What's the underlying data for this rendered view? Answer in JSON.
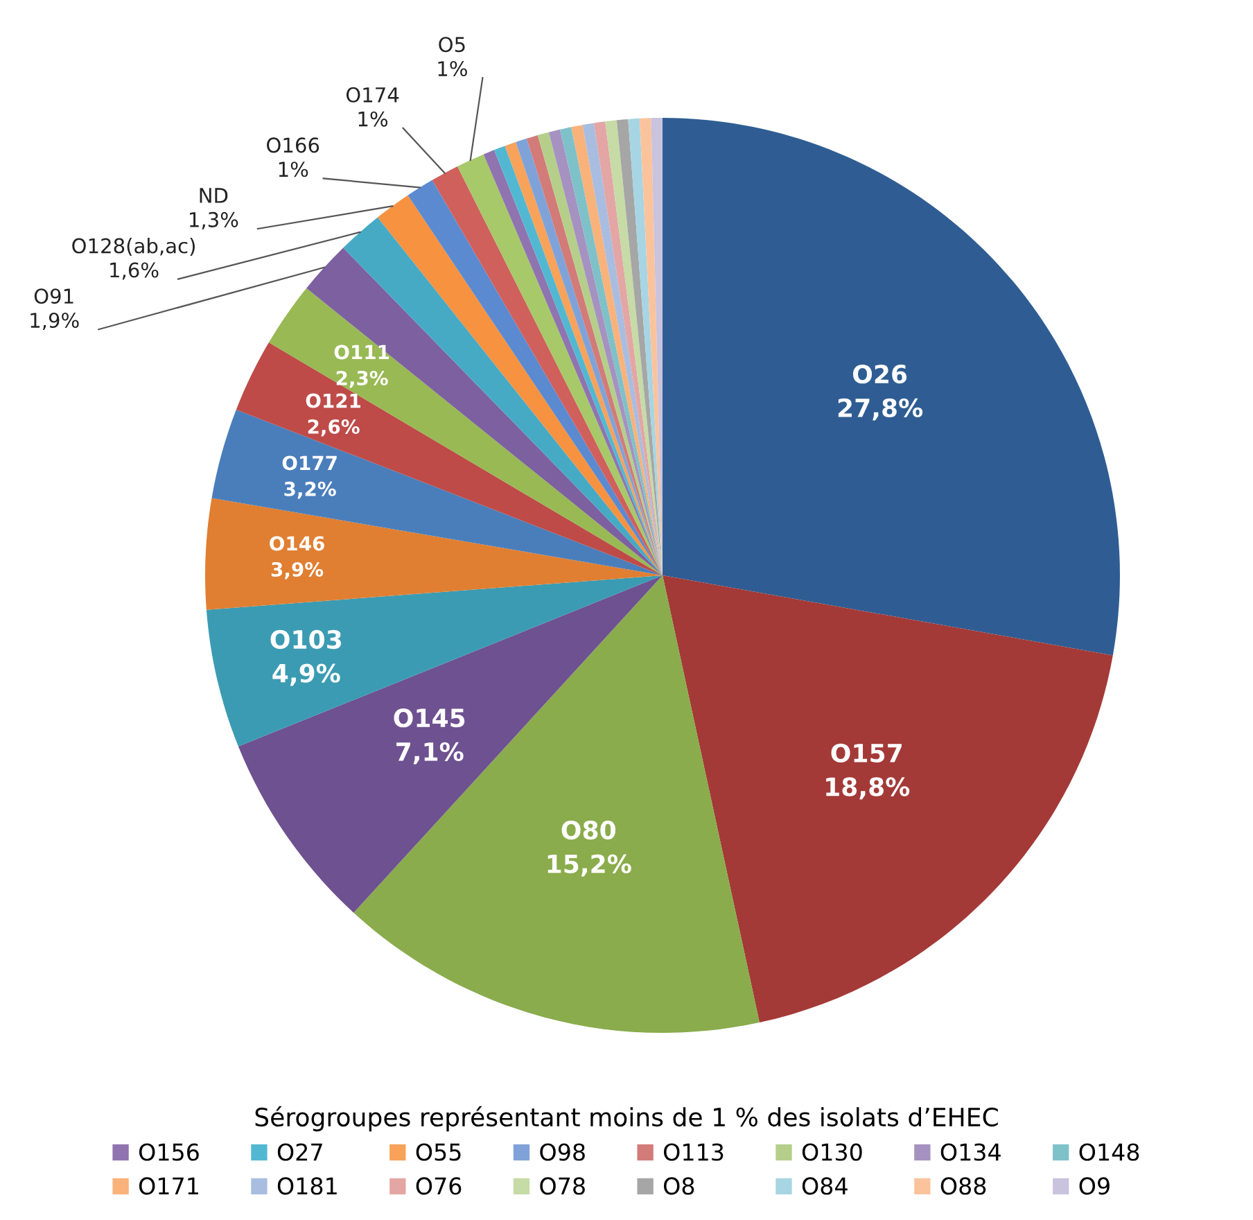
{
  "chart_data": {
    "type": "pie",
    "legend_title": "Sérogroupes représentant moins de 1 % des isolats d’EHEC",
    "legend": "bottom",
    "categories": [
      "O26",
      "O157",
      "O80",
      "O145",
      "O103",
      "O146",
      "O177",
      "O121",
      "O111",
      "O91",
      "O128(ab,ac)",
      "ND",
      "O166",
      "O174",
      "O5",
      "O156",
      "O27",
      "O55",
      "O98",
      "O113",
      "O130",
      "O134",
      "O148",
      "O171",
      "O181",
      "O76",
      "O78",
      "O8",
      "O84",
      "O88",
      "O9"
    ],
    "values": [
      27.8,
      18.8,
      15.2,
      7.1,
      4.9,
      3.9,
      3.2,
      2.6,
      2.3,
      1.9,
      1.6,
      1.3,
      1,
      1,
      1,
      0.4,
      0.4,
      0.4,
      0.4,
      0.4,
      0.4,
      0.4,
      0.4,
      0.4,
      0.4,
      0.4,
      0.4,
      0.4,
      0.4,
      0.4,
      0.4
    ],
    "value_labels": [
      "27,8%",
      "18,8%",
      "15,2%",
      "7,1%",
      "4,9%",
      "3,9%",
      "3,2%",
      "2,6%",
      "2,3%",
      "1,9%",
      "1,6%",
      "1,3%",
      "1%",
      "1%",
      "1%",
      null,
      null,
      null,
      null,
      null,
      null,
      null,
      null,
      null,
      null,
      null,
      null,
      null,
      null,
      null,
      null
    ],
    "colors": [
      "#2f5d93",
      "#a33a37",
      "#8aac4c",
      "#6e5190",
      "#3b9bb3",
      "#e07f32",
      "#4a7ebb",
      "#be4b48",
      "#98b954",
      "#7d60a0",
      "#46aac5",
      "#f69240",
      "#5b8ad0",
      "#d0605c",
      "#a7c96a",
      "#8f74b0",
      "#52b8d2",
      "#f8a25a",
      "#7fa3d8",
      "#d27b78",
      "#b5cf8a",
      "#a592c0",
      "#7fc1c8",
      "#f9b27a",
      "#a9bde0",
      "#e3a6a4",
      "#c6dba6",
      "#a6a6a6",
      "#a7d5e3",
      "#fbc39c",
      "#c9c3dd"
    ]
  }
}
